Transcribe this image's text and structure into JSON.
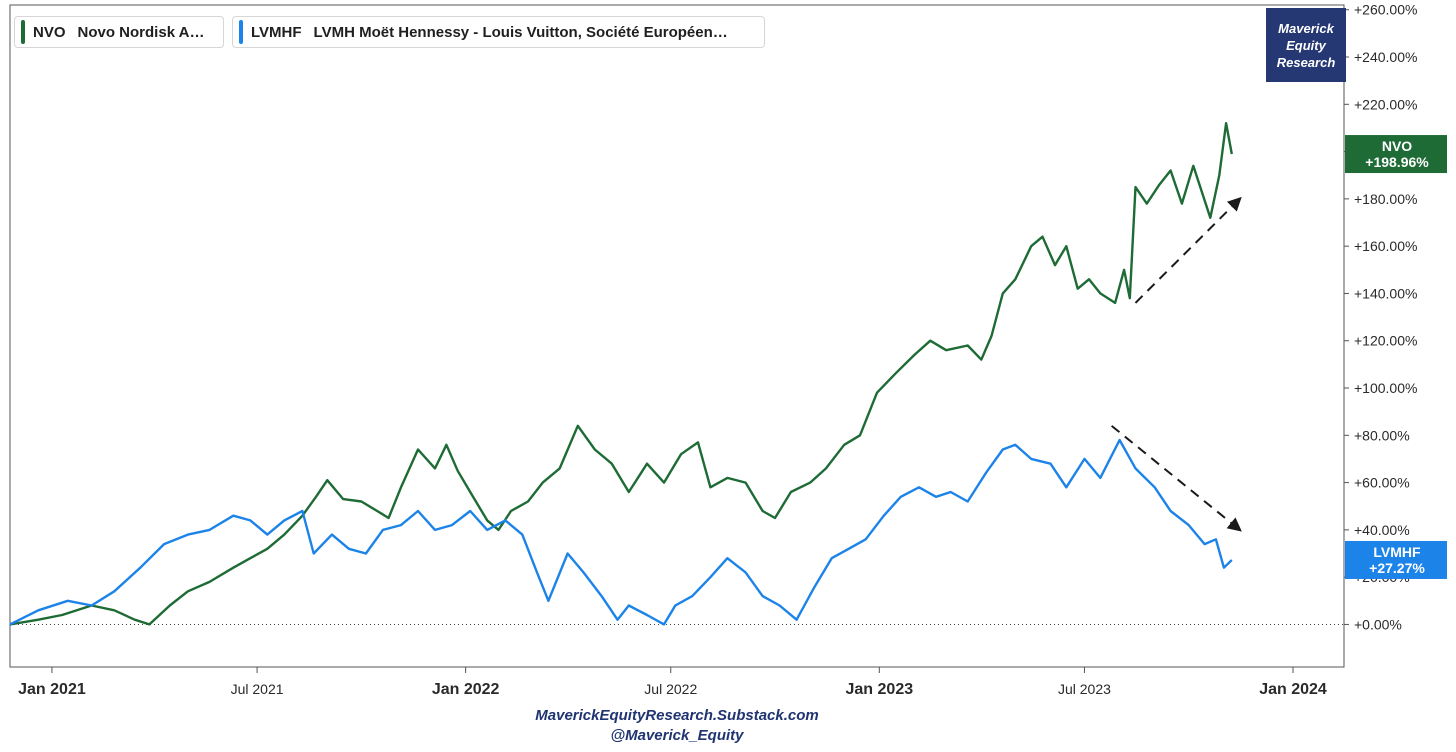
{
  "legend": [
    {
      "ticker": "NVO",
      "name": "Novo Nordisk A…",
      "color": "#1e6b36"
    },
    {
      "ticker": "LVMHF",
      "name": "LVMH Moët Hennessy - Louis Vuitton, Société Européen…",
      "color": "#1c83e8"
    }
  ],
  "brand_box": {
    "line1": "Maverick",
    "line2": "Equity",
    "line3": "Research",
    "color": "#253873"
  },
  "footer": {
    "line1": "MaverickEquityResearch.Substack.com",
    "line2": "@Maverick_Equity"
  },
  "chart_data": {
    "type": "line",
    "x_ticks": [
      {
        "label": "Jan 2021",
        "date": "2021-01-01",
        "bold": true
      },
      {
        "label": "Jul 2021",
        "date": "2021-07-01",
        "bold": false
      },
      {
        "label": "Jan 2022",
        "date": "2022-01-01",
        "bold": true
      },
      {
        "label": "Jul 2022",
        "date": "2022-07-01",
        "bold": false
      },
      {
        "label": "Jan 2023",
        "date": "2023-01-01",
        "bold": true
      },
      {
        "label": "Jul 2023",
        "date": "2023-07-01",
        "bold": false
      },
      {
        "label": "Jan 2024",
        "date": "2024-01-01",
        "bold": true
      }
    ],
    "xlim": [
      "2020-11-25",
      "2024-02-15"
    ],
    "ylim": [
      -18,
      262
    ],
    "y_ticks": [
      "+0.00%",
      "+20.00%",
      "+40.00%",
      "+60.00%",
      "+80.00%",
      "+100.00%",
      "+120.00%",
      "+140.00%",
      "+160.00%",
      "+180.00%",
      "+200.00%",
      "+220.00%",
      "+240.00%",
      "+260.00%"
    ],
    "y_tick_values": [
      0,
      20,
      40,
      60,
      80,
      100,
      120,
      140,
      160,
      180,
      200,
      220,
      240,
      260
    ],
    "zero_line": "dotted",
    "series": [
      {
        "name": "NVO",
        "color": "#1e6b36",
        "last_label": "+198.96%",
        "last_value": 198.96,
        "points": [
          [
            "2020-11-25",
            0
          ],
          [
            "2020-12-20",
            2
          ],
          [
            "2021-01-10",
            4
          ],
          [
            "2021-02-05",
            8
          ],
          [
            "2021-02-25",
            6
          ],
          [
            "2021-03-15",
            2
          ],
          [
            "2021-03-28",
            0
          ],
          [
            "2021-04-15",
            8
          ],
          [
            "2021-05-01",
            14
          ],
          [
            "2021-05-20",
            18
          ],
          [
            "2021-06-10",
            24
          ],
          [
            "2021-06-25",
            28
          ],
          [
            "2021-07-10",
            32
          ],
          [
            "2021-07-25",
            38
          ],
          [
            "2021-08-10",
            46
          ],
          [
            "2021-08-22",
            54
          ],
          [
            "2021-09-01",
            61
          ],
          [
            "2021-09-15",
            53
          ],
          [
            "2021-10-01",
            52
          ],
          [
            "2021-10-15",
            48
          ],
          [
            "2021-10-25",
            45
          ],
          [
            "2021-11-05",
            58
          ],
          [
            "2021-11-20",
            74
          ],
          [
            "2021-12-05",
            66
          ],
          [
            "2021-12-15",
            76
          ],
          [
            "2021-12-25",
            65
          ],
          [
            "2022-01-05",
            56
          ],
          [
            "2022-01-20",
            44
          ],
          [
            "2022-01-30",
            40
          ],
          [
            "2022-02-10",
            48
          ],
          [
            "2022-02-25",
            52
          ],
          [
            "2022-03-10",
            60
          ],
          [
            "2022-03-25",
            66
          ],
          [
            "2022-04-10",
            84
          ],
          [
            "2022-04-25",
            74
          ],
          [
            "2022-05-10",
            68
          ],
          [
            "2022-05-25",
            56
          ],
          [
            "2022-06-10",
            68
          ],
          [
            "2022-06-25",
            60
          ],
          [
            "2022-07-10",
            72
          ],
          [
            "2022-07-25",
            77
          ],
          [
            "2022-08-05",
            58
          ],
          [
            "2022-08-20",
            62
          ],
          [
            "2022-09-05",
            60
          ],
          [
            "2022-09-20",
            48
          ],
          [
            "2022-10-01",
            45
          ],
          [
            "2022-10-15",
            56
          ],
          [
            "2022-11-01",
            60
          ],
          [
            "2022-11-15",
            66
          ],
          [
            "2022-12-01",
            76
          ],
          [
            "2022-12-15",
            80
          ],
          [
            "2022-12-30",
            98
          ],
          [
            "2023-01-15",
            106
          ],
          [
            "2023-02-01",
            114
          ],
          [
            "2023-02-15",
            120
          ],
          [
            "2023-03-01",
            116
          ],
          [
            "2023-03-20",
            118
          ],
          [
            "2023-04-01",
            112
          ],
          [
            "2023-04-10",
            122
          ],
          [
            "2023-04-20",
            140
          ],
          [
            "2023-05-01",
            146
          ],
          [
            "2023-05-15",
            160
          ],
          [
            "2023-05-25",
            164
          ],
          [
            "2023-06-05",
            152
          ],
          [
            "2023-06-15",
            160
          ],
          [
            "2023-06-25",
            142
          ],
          [
            "2023-07-05",
            146
          ],
          [
            "2023-07-15",
            140
          ],
          [
            "2023-07-28",
            136
          ],
          [
            "2023-08-05",
            150
          ],
          [
            "2023-08-10",
            138
          ],
          [
            "2023-08-15",
            185
          ],
          [
            "2023-08-25",
            178
          ],
          [
            "2023-09-05",
            186
          ],
          [
            "2023-09-15",
            192
          ],
          [
            "2023-09-25",
            178
          ],
          [
            "2023-10-05",
            194
          ],
          [
            "2023-10-20",
            172
          ],
          [
            "2023-10-28",
            190
          ],
          [
            "2023-11-03",
            212
          ],
          [
            "2023-11-08",
            198.96
          ]
        ]
      },
      {
        "name": "LVMHF",
        "color": "#1c83e8",
        "last_label": "+27.27%",
        "last_value": 27.27,
        "points": [
          [
            "2020-11-25",
            0
          ],
          [
            "2020-12-20",
            6
          ],
          [
            "2021-01-15",
            10
          ],
          [
            "2021-02-05",
            8
          ],
          [
            "2021-02-25",
            14
          ],
          [
            "2021-03-20",
            24
          ],
          [
            "2021-04-10",
            34
          ],
          [
            "2021-05-01",
            38
          ],
          [
            "2021-05-20",
            40
          ],
          [
            "2021-06-10",
            46
          ],
          [
            "2021-06-25",
            44
          ],
          [
            "2021-07-10",
            38
          ],
          [
            "2021-07-25",
            44
          ],
          [
            "2021-08-10",
            48
          ],
          [
            "2021-08-20",
            30
          ],
          [
            "2021-09-05",
            38
          ],
          [
            "2021-09-20",
            32
          ],
          [
            "2021-10-05",
            30
          ],
          [
            "2021-10-20",
            40
          ],
          [
            "2021-11-05",
            42
          ],
          [
            "2021-11-20",
            48
          ],
          [
            "2021-12-05",
            40
          ],
          [
            "2021-12-20",
            42
          ],
          [
            "2022-01-05",
            48
          ],
          [
            "2022-01-20",
            40
          ],
          [
            "2022-02-05",
            44
          ],
          [
            "2022-02-20",
            38
          ],
          [
            "2022-03-05",
            22
          ],
          [
            "2022-03-15",
            10
          ],
          [
            "2022-04-01",
            30
          ],
          [
            "2022-04-15",
            22
          ],
          [
            "2022-05-01",
            12
          ],
          [
            "2022-05-15",
            2
          ],
          [
            "2022-05-25",
            8
          ],
          [
            "2022-06-10",
            4
          ],
          [
            "2022-06-25",
            0
          ],
          [
            "2022-07-05",
            8
          ],
          [
            "2022-07-20",
            12
          ],
          [
            "2022-08-05",
            20
          ],
          [
            "2022-08-20",
            28
          ],
          [
            "2022-09-05",
            22
          ],
          [
            "2022-09-20",
            12
          ],
          [
            "2022-10-05",
            8
          ],
          [
            "2022-10-20",
            2
          ],
          [
            "2022-11-05",
            16
          ],
          [
            "2022-11-20",
            28
          ],
          [
            "2022-12-05",
            32
          ],
          [
            "2022-12-20",
            36
          ],
          [
            "2023-01-05",
            46
          ],
          [
            "2023-01-20",
            54
          ],
          [
            "2023-02-05",
            58
          ],
          [
            "2023-02-20",
            54
          ],
          [
            "2023-03-05",
            56
          ],
          [
            "2023-03-20",
            52
          ],
          [
            "2023-04-05",
            64
          ],
          [
            "2023-04-20",
            74
          ],
          [
            "2023-05-01",
            76
          ],
          [
            "2023-05-15",
            70
          ],
          [
            "2023-06-01",
            68
          ],
          [
            "2023-06-15",
            58
          ],
          [
            "2023-07-01",
            70
          ],
          [
            "2023-07-15",
            62
          ],
          [
            "2023-08-01",
            78
          ],
          [
            "2023-08-15",
            66
          ],
          [
            "2023-09-01",
            58
          ],
          [
            "2023-09-15",
            48
          ],
          [
            "2023-10-01",
            42
          ],
          [
            "2023-10-15",
            34
          ],
          [
            "2023-10-25",
            36
          ],
          [
            "2023-11-01",
            24
          ],
          [
            "2023-11-08",
            27.27
          ]
        ]
      }
    ],
    "annotations": [
      {
        "type": "dashed-arrow",
        "color": "#1a1a1a",
        "from": [
          "2023-08-15",
          136
        ],
        "to": [
          "2023-11-15",
          180
        ]
      },
      {
        "type": "dashed-arrow",
        "color": "#1a1a1a",
        "from": [
          "2023-07-25",
          84
        ],
        "to": [
          "2023-11-15",
          40
        ]
      }
    ]
  }
}
